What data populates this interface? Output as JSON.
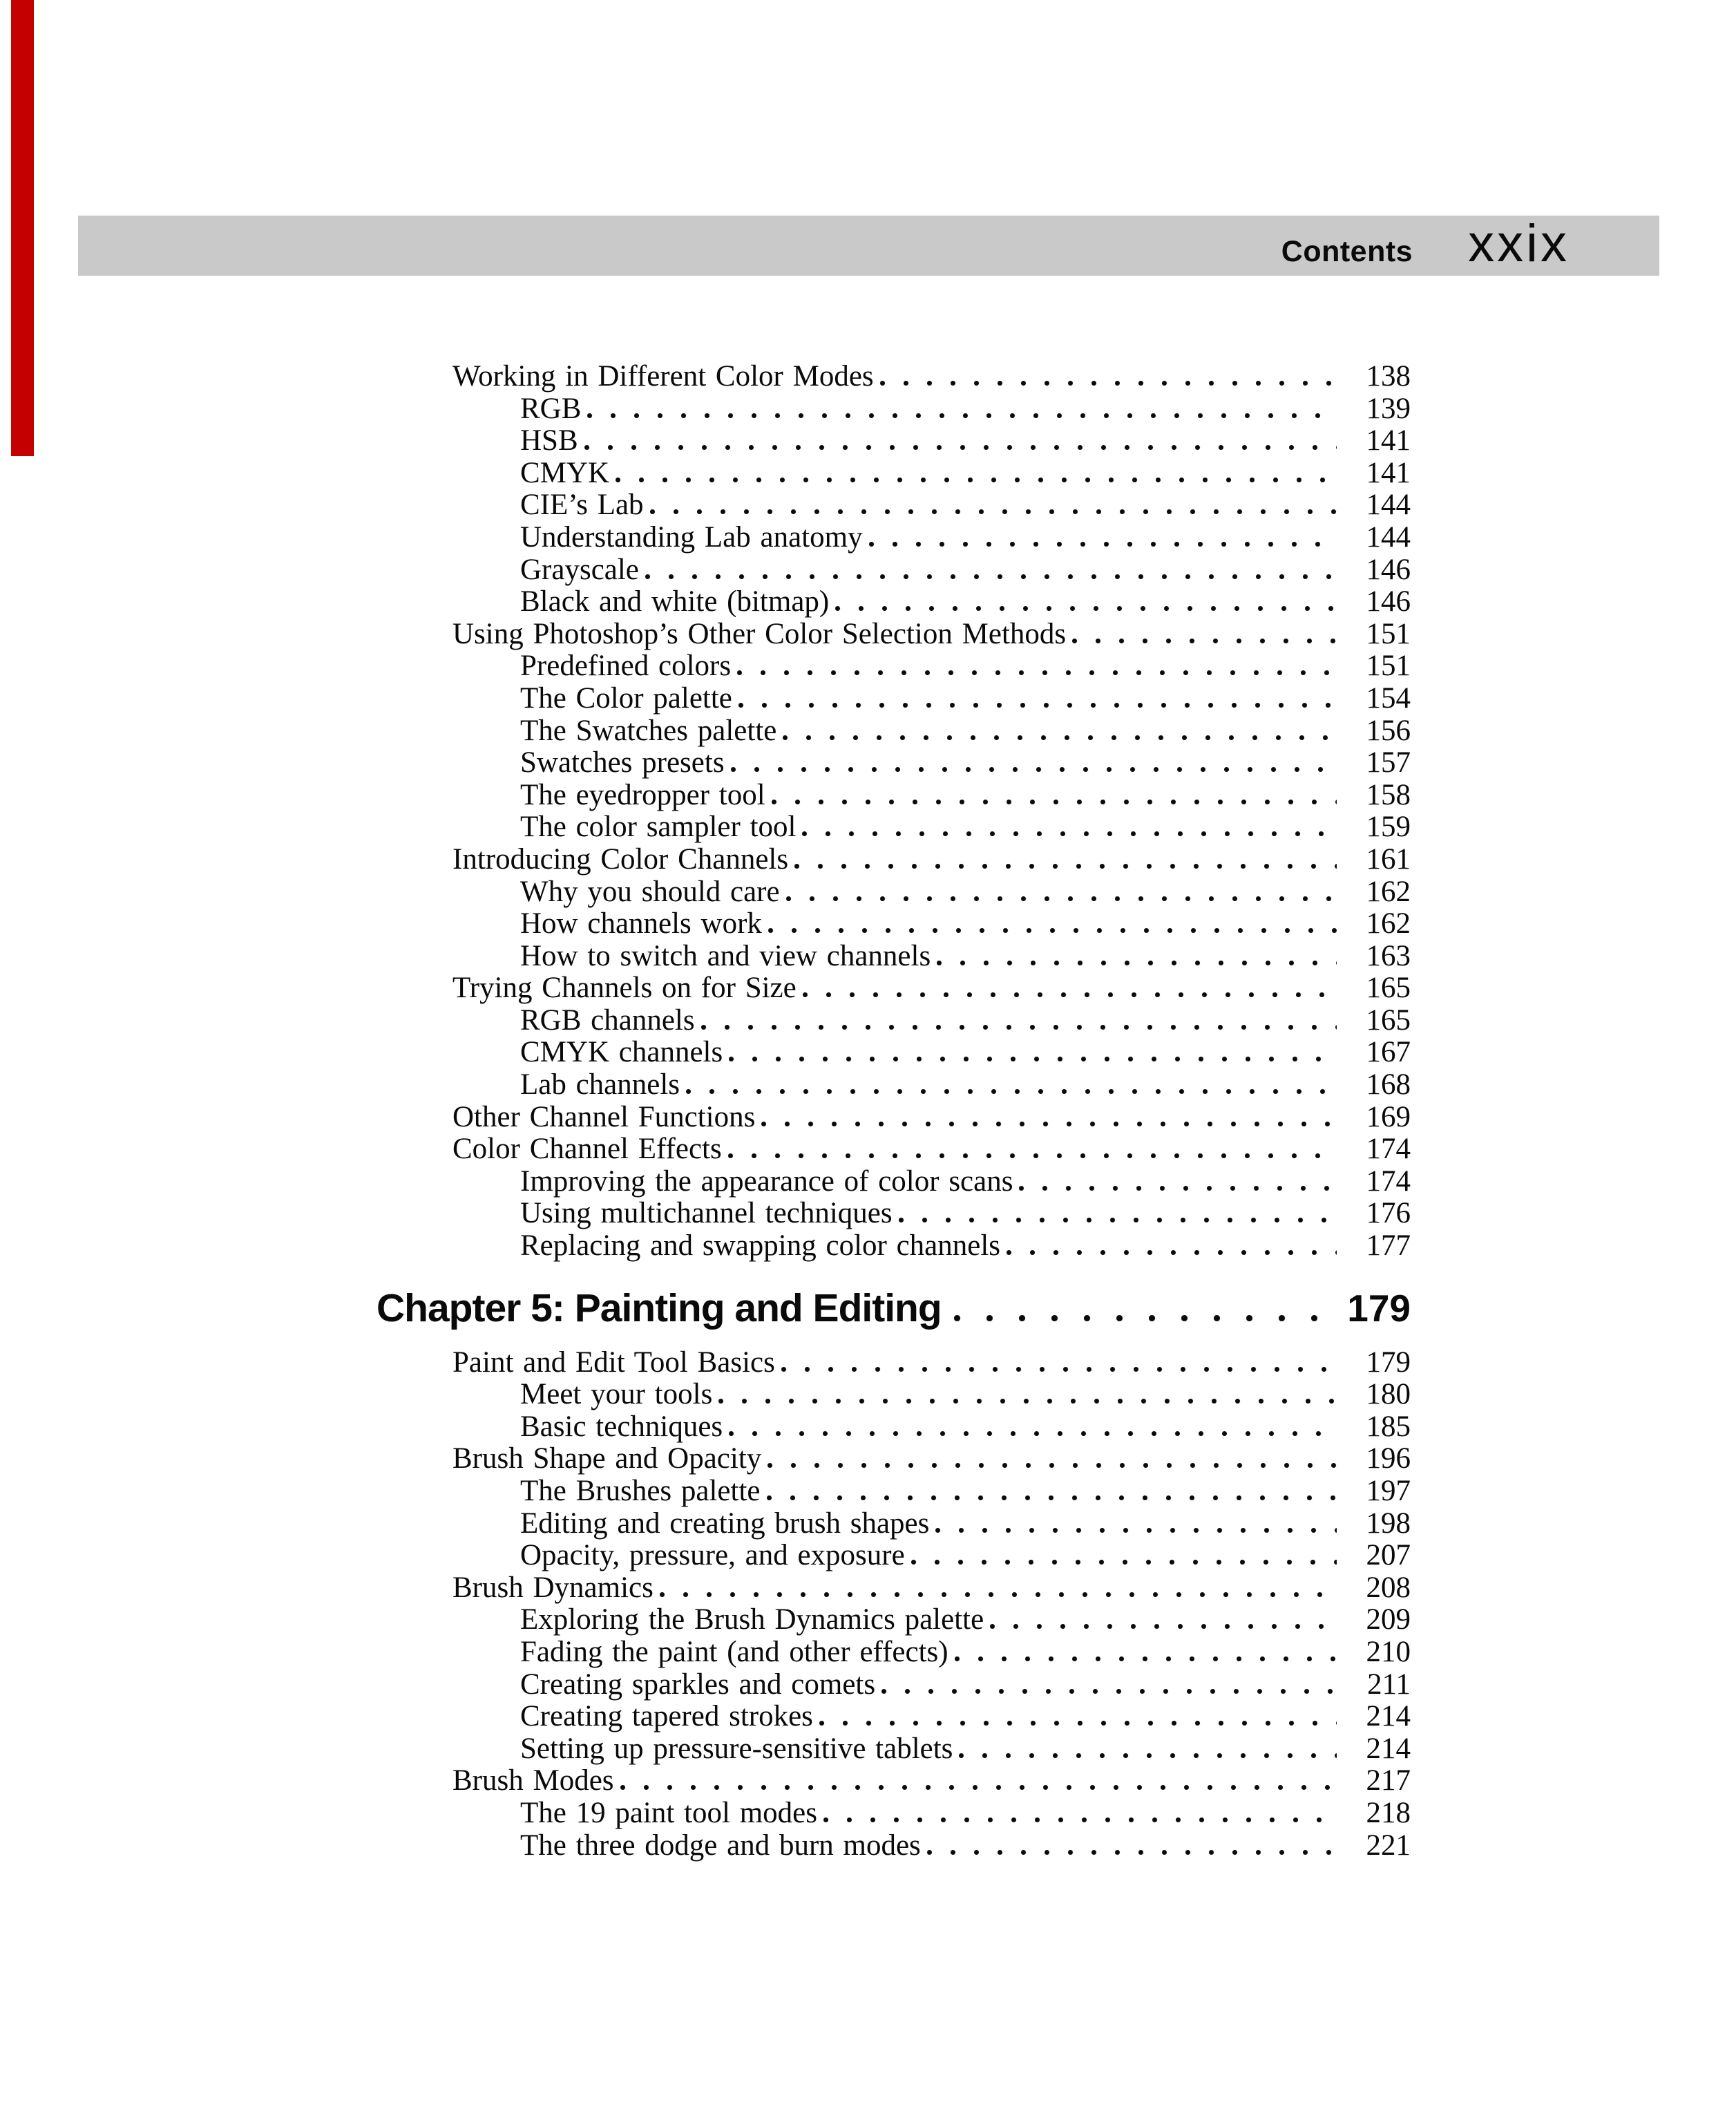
{
  "header": {
    "contents_label": "Contents",
    "folio": "xxix"
  },
  "colors": {
    "background": "#ffffff",
    "header_band": "#c9c9c9",
    "text": "#0a0a0a",
    "edge_tab_red": "#c40000"
  },
  "toc": {
    "sections": [
      {
        "type": "entries",
        "items": [
          {
            "title": "Working in Different Color Modes",
            "page": "138",
            "level": 1
          },
          {
            "title": "RGB",
            "page": "139",
            "level": 2
          },
          {
            "title": "HSB",
            "page": "141",
            "level": 2
          },
          {
            "title": "CMYK",
            "page": "141",
            "level": 2
          },
          {
            "title": "CIE’s Lab",
            "page": "144",
            "level": 2
          },
          {
            "title": "Understanding Lab anatomy",
            "page": "144",
            "level": 2
          },
          {
            "title": "Grayscale",
            "page": "146",
            "level": 2
          },
          {
            "title": "Black and white (bitmap)",
            "page": "146",
            "level": 2
          },
          {
            "title": "Using Photoshop’s Other Color Selection Methods",
            "page": "151",
            "level": 1
          },
          {
            "title": "Predefined colors",
            "page": "151",
            "level": 2
          },
          {
            "title": "The Color palette",
            "page": "154",
            "level": 2
          },
          {
            "title": "The Swatches palette",
            "page": "156",
            "level": 2
          },
          {
            "title": "Swatches presets",
            "page": "157",
            "level": 2
          },
          {
            "title": "The eyedropper tool",
            "page": "158",
            "level": 2
          },
          {
            "title": "The color sampler tool",
            "page": "159",
            "level": 2
          },
          {
            "title": "Introducing Color Channels",
            "page": "161",
            "level": 1
          },
          {
            "title": "Why you should care",
            "page": "162",
            "level": 2
          },
          {
            "title": "How channels work",
            "page": "162",
            "level": 2
          },
          {
            "title": "How to switch and view channels",
            "page": "163",
            "level": 2
          },
          {
            "title": "Trying Channels on for Size",
            "page": "165",
            "level": 1
          },
          {
            "title": "RGB channels",
            "page": "165",
            "level": 2
          },
          {
            "title": "CMYK channels",
            "page": "167",
            "level": 2
          },
          {
            "title": "Lab channels",
            "page": "168",
            "level": 2
          },
          {
            "title": "Other Channel Functions",
            "page": "169",
            "level": 1
          },
          {
            "title": "Color Channel Effects",
            "page": "174",
            "level": 1
          },
          {
            "title": "Improving the appearance of color scans",
            "page": "174",
            "level": 2
          },
          {
            "title": "Using multichannel techniques",
            "page": "176",
            "level": 2
          },
          {
            "title": "Replacing and swapping color channels",
            "page": "177",
            "level": 2
          }
        ]
      },
      {
        "type": "chapter",
        "title": "Chapter 5: Painting and Editing",
        "page": "179"
      },
      {
        "type": "entries",
        "items": [
          {
            "title": "Paint and Edit Tool Basics",
            "page": "179",
            "level": 1
          },
          {
            "title": "Meet your tools",
            "page": "180",
            "level": 2
          },
          {
            "title": "Basic techniques",
            "page": "185",
            "level": 2
          },
          {
            "title": "Brush Shape and Opacity",
            "page": "196",
            "level": 1
          },
          {
            "title": "The Brushes palette",
            "page": "197",
            "level": 2
          },
          {
            "title": "Editing and creating brush shapes",
            "page": "198",
            "level": 2
          },
          {
            "title": "Opacity, pressure, and exposure",
            "page": "207",
            "level": 2
          },
          {
            "title": "Brush Dynamics",
            "page": "208",
            "level": 1
          },
          {
            "title": "Exploring the Brush Dynamics palette",
            "page": "209",
            "level": 2
          },
          {
            "title": "Fading the paint (and other effects)",
            "page": "210",
            "level": 2
          },
          {
            "title": "Creating sparkles and comets",
            "page": "211",
            "level": 2
          },
          {
            "title": "Creating tapered strokes",
            "page": "214",
            "level": 2
          },
          {
            "title": "Setting up pressure-sensitive tablets",
            "page": "214",
            "level": 2
          },
          {
            "title": "Brush Modes",
            "page": "217",
            "level": 1
          },
          {
            "title": "The 19 paint tool modes",
            "page": "218",
            "level": 2
          },
          {
            "title": "The three dodge and burn modes",
            "page": "221",
            "level": 2
          }
        ]
      }
    ]
  }
}
